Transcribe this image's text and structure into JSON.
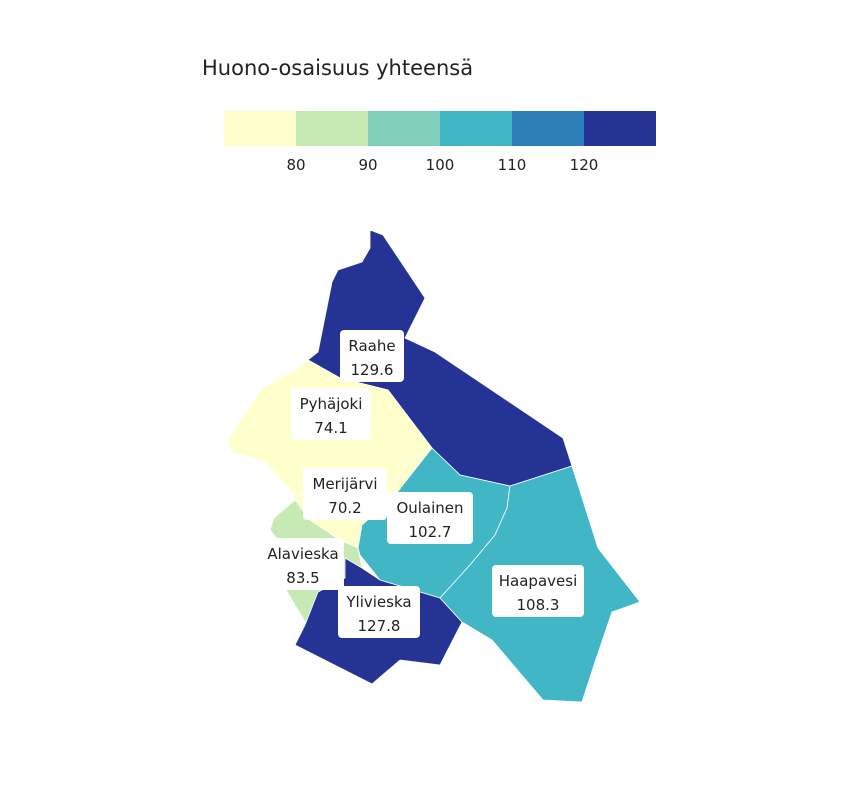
{
  "legend": {
    "title": "Huono-osaisuus yhteensä",
    "colors": [
      "#ffffcc",
      "#c7e9b4",
      "#7fcdbb",
      "#41b6c4",
      "#2c7fb8",
      "#253494"
    ],
    "ticks": [
      "80",
      "90",
      "100",
      "110",
      "120"
    ]
  },
  "municipalities": [
    {
      "id": "raahe",
      "name": "Raahe",
      "value": "129.6",
      "color": "#253494"
    },
    {
      "id": "pyhajoki",
      "name": "Pyhäjoki",
      "value": "74.1",
      "color": "#ffffcc"
    },
    {
      "id": "merijarvi",
      "name": "Merijärvi",
      "value": "70.2",
      "color": "#ffffcc"
    },
    {
      "id": "oulainen",
      "name": "Oulainen",
      "value": "102.7",
      "color": "#41b6c4"
    },
    {
      "id": "alavieska",
      "name": "Alavieska",
      "value": "83.5",
      "color": "#c7e9b4"
    },
    {
      "id": "ylivieska",
      "name": "Ylivieska",
      "value": "127.8",
      "color": "#253494"
    },
    {
      "id": "haapavesi",
      "name": "Haapavesi",
      "value": "108.3",
      "color": "#41b6c4"
    }
  ]
}
